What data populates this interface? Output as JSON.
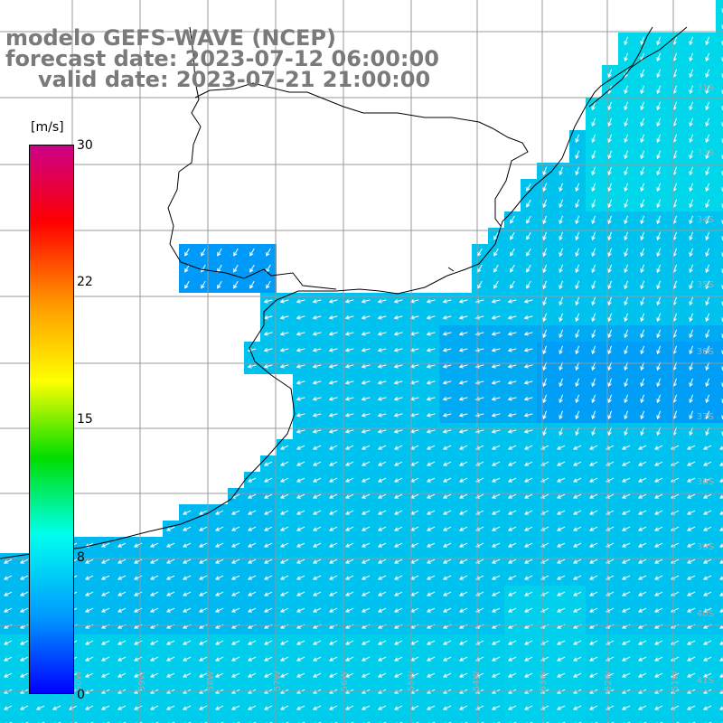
{
  "title": {
    "line1": "modelo GEFS-WAVE (NCEP)",
    "line2": "forecast date: 2023-07-12 06:00:00",
    "line3": "valid date: 2023-07-21 21:00:00"
  },
  "colorbar": {
    "unit": "[m/s]",
    "ticks": [
      "30",
      "22",
      "15",
      "8",
      "0"
    ],
    "tick_values": [
      30,
      22,
      15,
      8,
      0
    ],
    "range": [
      0,
      30
    ],
    "colors": [
      "#0000ff",
      "#0099ff",
      "#00ffee",
      "#00dd00",
      "#ffff00",
      "#ff9900",
      "#ff0000",
      "#cc0088"
    ]
  },
  "map": {
    "field": "wind speed with direction arrows",
    "land_color": "#ffffff",
    "grid_color": "#999999",
    "arrow_color": "#ffffff",
    "lat_labels": [
      "31S",
      "33S",
      "34S",
      "35S",
      "36S",
      "37S",
      "38S",
      "39S",
      "40S",
      "41S"
    ],
    "lon_labels": [
      "60W",
      "59W",
      "58W",
      "57W",
      "56W",
      "55W",
      "54W",
      "53W",
      "52W",
      "51W"
    ]
  }
}
